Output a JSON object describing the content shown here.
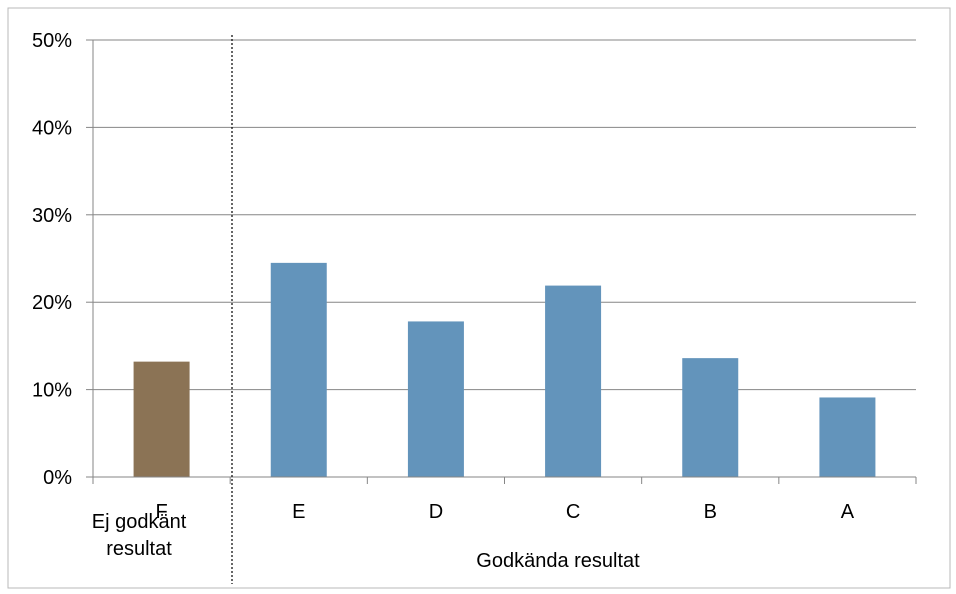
{
  "chart_data": {
    "type": "bar",
    "title": "",
    "xlabel": "",
    "ylabel": "",
    "categories": [
      "F",
      "E",
      "D",
      "C",
      "B",
      "A"
    ],
    "values": [
      13.2,
      24.5,
      17.8,
      21.9,
      13.6,
      9.1
    ],
    "ylim": [
      0,
      50
    ],
    "yticks": [
      "0%",
      "10%",
      "20%",
      "30%",
      "40%",
      "50%"
    ],
    "ytick_values": [
      0,
      10,
      20,
      30,
      40,
      50
    ],
    "grid": true,
    "legend": "none",
    "groups": [
      {
        "label_lines": [
          "Ej godkänt",
          "resultat"
        ],
        "categories": [
          "F"
        ]
      },
      {
        "label_lines": [
          "Godkända resultat"
        ],
        "categories": [
          "E",
          "D",
          "C",
          "B",
          "A"
        ]
      }
    ],
    "colors": {
      "failed": "#8b7355",
      "passed": "#6394bb",
      "gridline": "#868686",
      "separator": "#000000"
    },
    "bar_colors": [
      "failed",
      "passed",
      "passed",
      "passed",
      "passed",
      "passed"
    ]
  }
}
